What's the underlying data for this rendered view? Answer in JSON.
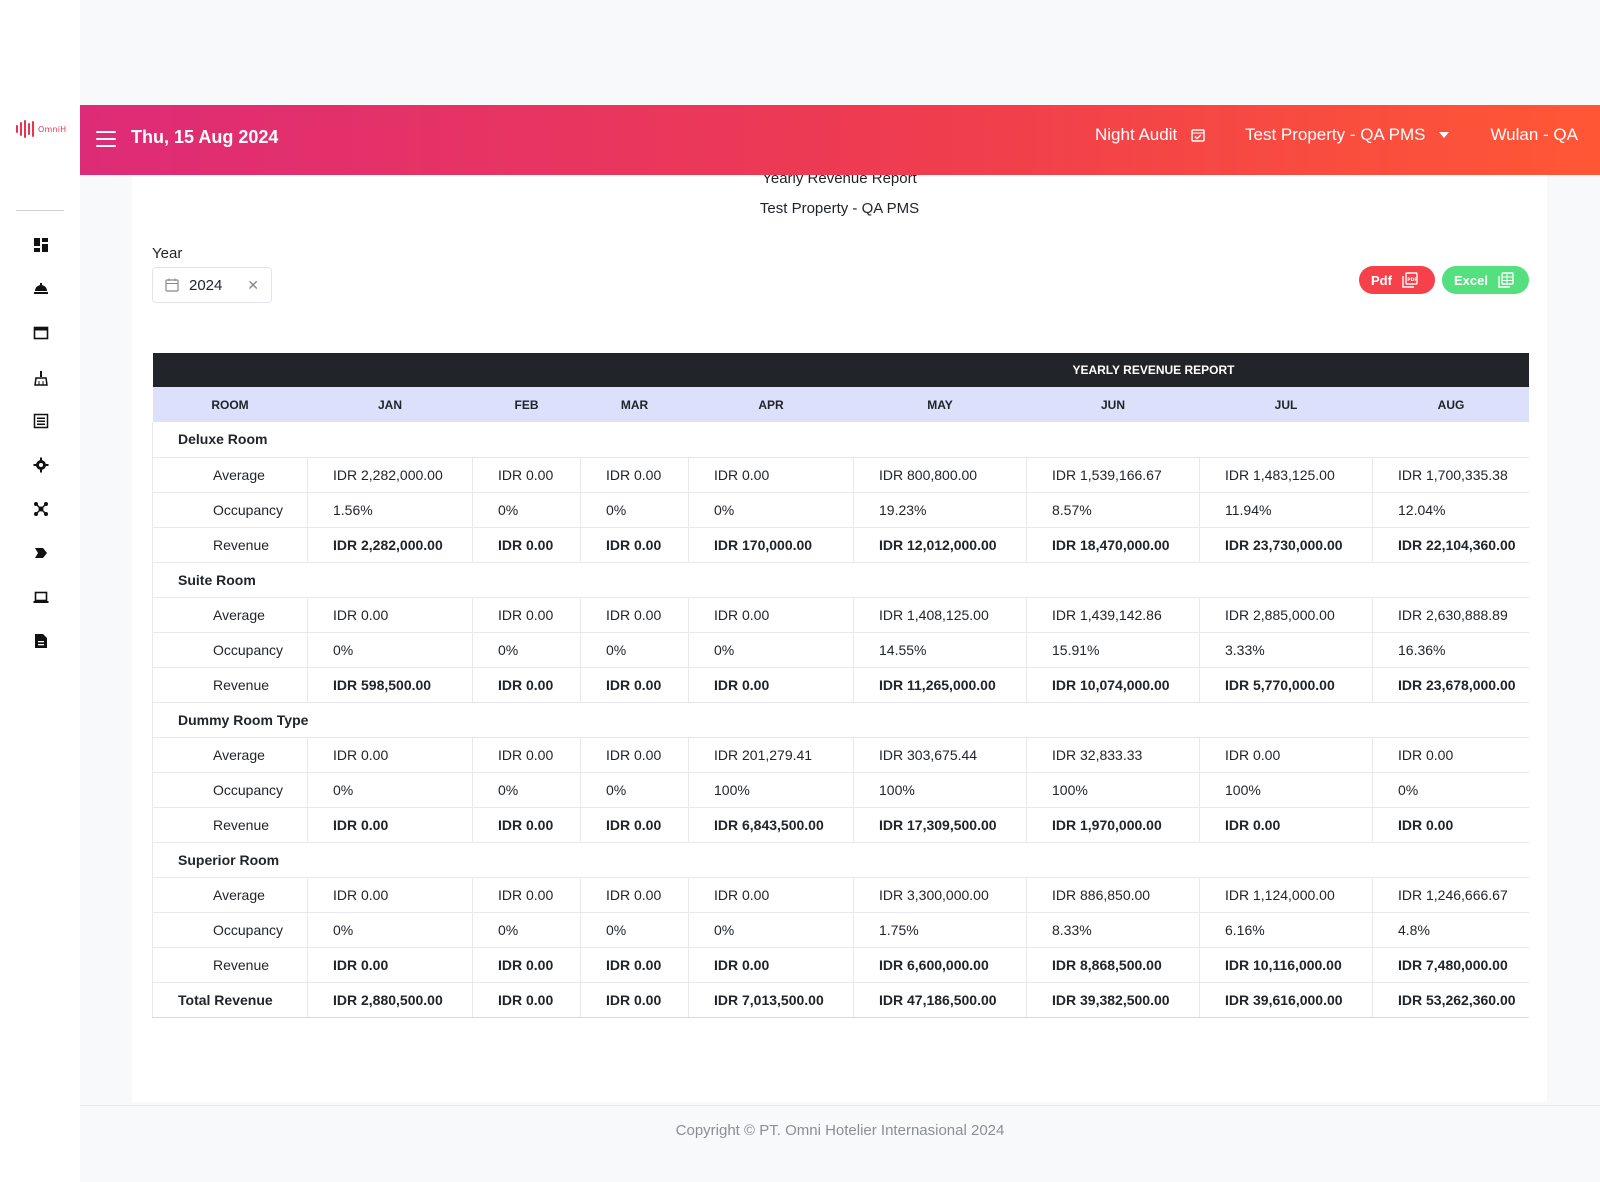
{
  "topbar": {
    "date": "Thu, 15 Aug 2024",
    "night_audit": "Night Audit",
    "property": "Test Property - QA PMS",
    "user": "Wulan - QA"
  },
  "brand": {
    "text": "OmniH"
  },
  "report": {
    "title": "Yearly Revenue Report",
    "property": "Test Property - QA PMS",
    "year_label": "Year",
    "year_value": "2024",
    "pdf_label": "Pdf",
    "excel_label": "Excel",
    "band_title": "YEARLY REVENUE REPORT",
    "columns": [
      "ROOM",
      "JAN",
      "FEB",
      "MAR",
      "APR",
      "MAY",
      "JUN",
      "JUL",
      "AUG"
    ],
    "groups": [
      {
        "name": "Deluxe Room",
        "rows": [
          {
            "label": "Average",
            "values": [
              "IDR 2,282,000.00",
              "IDR 0.00",
              "IDR 0.00",
              "IDR 0.00",
              "IDR 800,800.00",
              "IDR 1,539,166.67",
              "IDR 1,483,125.00",
              "IDR 1,700,335.38"
            ]
          },
          {
            "label": "Occupancy",
            "values": [
              "1.56%",
              "0%",
              "0%",
              "0%",
              "19.23%",
              "8.57%",
              "11.94%",
              "12.04%"
            ]
          },
          {
            "label": "Revenue",
            "values": [
              "IDR 2,282,000.00",
              "IDR 0.00",
              "IDR 0.00",
              "IDR 170,000.00",
              "IDR 12,012,000.00",
              "IDR 18,470,000.00",
              "IDR 23,730,000.00",
              "IDR 22,104,360.00"
            ]
          }
        ]
      },
      {
        "name": "Suite Room",
        "rows": [
          {
            "label": "Average",
            "values": [
              "IDR 0.00",
              "IDR 0.00",
              "IDR 0.00",
              "IDR 0.00",
              "IDR 1,408,125.00",
              "IDR 1,439,142.86",
              "IDR 2,885,000.00",
              "IDR 2,630,888.89"
            ]
          },
          {
            "label": "Occupancy",
            "values": [
              "0%",
              "0%",
              "0%",
              "0%",
              "14.55%",
              "15.91%",
              "3.33%",
              "16.36%"
            ]
          },
          {
            "label": "Revenue",
            "values": [
              "IDR 598,500.00",
              "IDR 0.00",
              "IDR 0.00",
              "IDR 0.00",
              "IDR 11,265,000.00",
              "IDR 10,074,000.00",
              "IDR 5,770,000.00",
              "IDR 23,678,000.00"
            ]
          }
        ]
      },
      {
        "name": "Dummy Room Type",
        "rows": [
          {
            "label": "Average",
            "values": [
              "IDR 0.00",
              "IDR 0.00",
              "IDR 0.00",
              "IDR 201,279.41",
              "IDR 303,675.44",
              "IDR 32,833.33",
              "IDR 0.00",
              "IDR 0.00"
            ]
          },
          {
            "label": "Occupancy",
            "values": [
              "0%",
              "0%",
              "0%",
              "100%",
              "100%",
              "100%",
              "100%",
              "0%"
            ]
          },
          {
            "label": "Revenue",
            "values": [
              "IDR 0.00",
              "IDR 0.00",
              "IDR 0.00",
              "IDR 6,843,500.00",
              "IDR 17,309,500.00",
              "IDR 1,970,000.00",
              "IDR 0.00",
              "IDR 0.00"
            ]
          }
        ]
      },
      {
        "name": "Superior Room",
        "rows": [
          {
            "label": "Average",
            "values": [
              "IDR 0.00",
              "IDR 0.00",
              "IDR 0.00",
              "IDR 0.00",
              "IDR 3,300,000.00",
              "IDR 886,850.00",
              "IDR 1,124,000.00",
              "IDR 1,246,666.67"
            ]
          },
          {
            "label": "Occupancy",
            "values": [
              "0%",
              "0%",
              "0%",
              "0%",
              "1.75%",
              "8.33%",
              "6.16%",
              "4.8%"
            ]
          },
          {
            "label": "Revenue",
            "values": [
              "IDR 0.00",
              "IDR 0.00",
              "IDR 0.00",
              "IDR 0.00",
              "IDR 6,600,000.00",
              "IDR 8,868,500.00",
              "IDR 10,116,000.00",
              "IDR 7,480,000.00"
            ]
          }
        ]
      }
    ],
    "total": {
      "label": "Total Revenue",
      "values": [
        "IDR 2,880,500.00",
        "IDR 0.00",
        "IDR 0.00",
        "IDR 7,013,500.00",
        "IDR 47,186,500.00",
        "IDR 39,382,500.00",
        "IDR 39,616,000.00",
        "IDR 53,262,360.00"
      ]
    }
  },
  "sidebar": {
    "icons": [
      "dashboard-icon",
      "concierge-bell-icon",
      "folder-icon",
      "housekeeping-icon",
      "list-icon",
      "gear-icon",
      "network-icon",
      "tag-icon",
      "laptop-icon",
      "report-icon"
    ]
  },
  "footer": {
    "copyright": "Copyright © PT. Omni Hotelier Internasional 2024"
  },
  "colors": {
    "accent_start": "#de2b77",
    "accent_end": "#ff5735",
    "pdf": "#f6414b",
    "excel": "#54e07e",
    "table_band": "#212529",
    "table_header": "#dce0fa"
  }
}
